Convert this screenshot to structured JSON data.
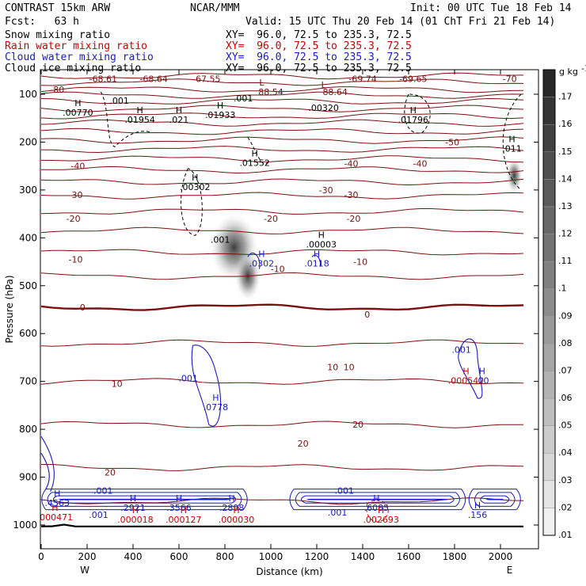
{
  "header": {
    "model": "CONTRAST 15km ARW",
    "fcst": "Fcst:   63 h",
    "center": "NCAR/MMM",
    "init": "Init: 00 UTC Tue 18 Feb 14",
    "valid": "Valid: 15 UTC Thu 20 Feb 14 (01 ChT Fri 21 Feb 14)"
  },
  "fields": [
    {
      "name": "Snow mixing ratio",
      "xy": "XY=  96.0, 72.5 to 235.3, 72.5",
      "color": "#000000"
    },
    {
      "name": "Rain water mixing ratio",
      "xy": "XY=  96.0, 72.5 to 235.3, 72.5",
      "color": "#cc0000"
    },
    {
      "name": "Cloud water mixing ratio",
      "xy": "XY=  96.0, 72.5 to 235.3, 72.5",
      "color": "#1a1acc"
    },
    {
      "name": "Cloud ice mixing ratio",
      "xy": "XY=  96.0, 72.5 to 235.3, 72.5",
      "color": "#000000"
    }
  ],
  "chart_data": {
    "type": "contour cross-section",
    "xlabel": "Distance (km)",
    "ylabel": "Pressure (hPa)",
    "x_ticks": [
      0,
      200,
      400,
      600,
      800,
      1000,
      1200,
      1400,
      1600,
      1800,
      2000
    ],
    "y_ticks": [
      100,
      200,
      300,
      400,
      500,
      600,
      700,
      800,
      900,
      1000
    ],
    "xlim": [
      0,
      2090
    ],
    "ylim": [
      1050,
      50
    ],
    "x_end_labels": {
      "left": "W",
      "right": "E"
    },
    "colorbar": {
      "unit": "g kg",
      "unit_sup": "-1",
      "levels": [
        ".01",
        ".02",
        ".03",
        ".04",
        ".05",
        ".06",
        ".07",
        ".08",
        ".09",
        ".1",
        ".11",
        ".12",
        ".13",
        ".14",
        ".15",
        ".16",
        ".17"
      ]
    },
    "temperature_labels": [
      {
        "text": "-68.61",
        "x": 270,
        "p": 68
      },
      {
        "text": "-68.64",
        "x": 490,
        "p": 68
      },
      {
        "text": "-67.55",
        "x": 720,
        "p": 68
      },
      {
        "text": "-69.74",
        "x": 1400,
        "p": 68
      },
      {
        "text": "-69.65",
        "x": 1620,
        "p": 68
      },
      {
        "text": "-70",
        "x": 2040,
        "p": 68
      },
      {
        "text": "-80",
        "x": 70,
        "p": 90
      },
      {
        "text": "88.54",
        "x": 1000,
        "p": 95
      },
      {
        "text": "88.64",
        "x": 1280,
        "p": 95
      },
      {
        "text": "-50",
        "x": 1790,
        "p": 200
      },
      {
        "text": "-40",
        "x": 160,
        "p": 250
      },
      {
        "text": "-40",
        "x": 1350,
        "p": 245
      },
      {
        "text": "-40",
        "x": 1650,
        "p": 245
      },
      {
        "text": "-30",
        "x": 150,
        "p": 310
      },
      {
        "text": "-30",
        "x": 1240,
        "p": 300
      },
      {
        "text": "-30",
        "x": 1350,
        "p": 310
      },
      {
        "text": "-20",
        "x": 140,
        "p": 360
      },
      {
        "text": "-20",
        "x": 1000,
        "p": 360
      },
      {
        "text": "-20",
        "x": 1360,
        "p": 360
      },
      {
        "text": "-10",
        "x": 150,
        "p": 445
      },
      {
        "text": "-10",
        "x": 1030,
        "p": 465
      },
      {
        "text": "-10",
        "x": 1390,
        "p": 450
      },
      {
        "text": "0",
        "x": 180,
        "p": 545
      },
      {
        "text": "0",
        "x": 1420,
        "p": 560
      },
      {
        "text": "10",
        "x": 1270,
        "p": 670
      },
      {
        "text": "10",
        "x": 1340,
        "p": 670
      },
      {
        "text": "10",
        "x": 330,
        "p": 705
      },
      {
        "text": "20",
        "x": 1140,
        "p": 830
      },
      {
        "text": "20",
        "x": 1380,
        "p": 790
      },
      {
        "text": "20",
        "x": 300,
        "p": 890
      }
    ],
    "extremum_labels": [
      {
        "type": "H",
        "value": ".00770",
        "x": 160,
        "p": 135,
        "color": "#000000"
      },
      {
        "type": "H",
        "value": ".01954",
        "x": 430,
        "p": 150,
        "color": "#000000"
      },
      {
        "type": "H",
        "value": ".021",
        "x": 600,
        "p": 150,
        "color": "#000000"
      },
      {
        "type": "H",
        "value": ".01933",
        "x": 780,
        "p": 140,
        "color": "#000000"
      },
      {
        "type": "",
        "value": ".001",
        "x": 340,
        "p": 110,
        "color": "#000000"
      },
      {
        "type": "",
        "value": ".001",
        "x": 880,
        "p": 105,
        "color": "#000000"
      },
      {
        "type": "",
        "value": ".00320",
        "x": 1230,
        "p": 125,
        "color": "#000000"
      },
      {
        "type": "H",
        "value": ".01796",
        "x": 1620,
        "p": 150,
        "color": "#000000"
      },
      {
        "type": "H",
        "value": ".011",
        "x": 2050,
        "p": 210,
        "color": "#000000"
      },
      {
        "type": "H",
        "value": ".01552",
        "x": 930,
        "p": 240,
        "color": "#000000"
      },
      {
        "type": "H",
        "value": ".00302",
        "x": 670,
        "p": 290,
        "color": "#000000"
      },
      {
        "type": "",
        "value": ".001",
        "x": 780,
        "p": 400,
        "color": "#000000"
      },
      {
        "type": "H",
        "value": ".00003",
        "x": 1220,
        "p": 410,
        "color": "#000000"
      },
      {
        "type": "H",
        "value": ".0302",
        "x": 960,
        "p": 450,
        "color": "#1a1acc"
      },
      {
        "type": "H",
        "value": ".0118",
        "x": 1200,
        "p": 450,
        "color": "#1a1acc"
      },
      {
        "type": "",
        "value": ".001",
        "x": 1830,
        "p": 630,
        "color": "#1a1acc"
      },
      {
        "type": "H",
        "value": ".000542",
        "x": 1850,
        "p": 695,
        "color": "#cc0000"
      },
      {
        "type": "H",
        "value": ".00",
        "x": 1920,
        "p": 695,
        "color": "#1a1acc"
      },
      {
        "type": "",
        "value": ".001",
        "x": 640,
        "p": 690,
        "color": "#1a1acc"
      },
      {
        "type": "H",
        "value": ".0778",
        "x": 760,
        "p": 750,
        "color": "#1a1acc"
      },
      {
        "type": "H",
        "value": ".4563",
        "x": 70,
        "p": 950,
        "color": "#1a1acc"
      },
      {
        "type": "",
        "value": ".001",
        "x": 270,
        "p": 925,
        "color": "#1a1acc"
      },
      {
        "type": "",
        "value": ".001",
        "x": 250,
        "p": 975,
        "color": "#1a1acc"
      },
      {
        "type": "H",
        "value": ".000471",
        "x": 60,
        "p": 980,
        "color": "#cc0000"
      },
      {
        "type": "H",
        "value": ".2921",
        "x": 400,
        "p": 960,
        "color": "#1a1acc"
      },
      {
        "type": "H",
        "value": ".000018",
        "x": 410,
        "p": 985,
        "color": "#cc0000"
      },
      {
        "type": "H",
        "value": ".3566",
        "x": 600,
        "p": 960,
        "color": "#1a1acc"
      },
      {
        "type": "H",
        "value": ".000127",
        "x": 620,
        "p": 985,
        "color": "#cc0000"
      },
      {
        "type": "H",
        "value": ".2898",
        "x": 830,
        "p": 960,
        "color": "#1a1acc"
      },
      {
        "type": "H",
        "value": ".000030",
        "x": 850,
        "p": 985,
        "color": "#cc0000"
      },
      {
        "type": "",
        "value": ".001",
        "x": 1320,
        "p": 925,
        "color": "#1a1acc"
      },
      {
        "type": "",
        "value": ".001",
        "x": 1290,
        "p": 970,
        "color": "#1a1acc"
      },
      {
        "type": "H",
        "value": ".6085",
        "x": 1460,
        "p": 960,
        "color": "#1a1acc"
      },
      {
        "type": "H",
        "value": ".002693",
        "x": 1480,
        "p": 985,
        "color": "#cc0000"
      },
      {
        "type": "H",
        "value": ".156",
        "x": 1900,
        "p": 975,
        "color": "#1a1acc"
      }
    ],
    "low_labels": [
      {
        "text": "L",
        "x": 960,
        "p": 75
      },
      {
        "text": "L",
        "x": 1230,
        "p": 80
      }
    ]
  }
}
